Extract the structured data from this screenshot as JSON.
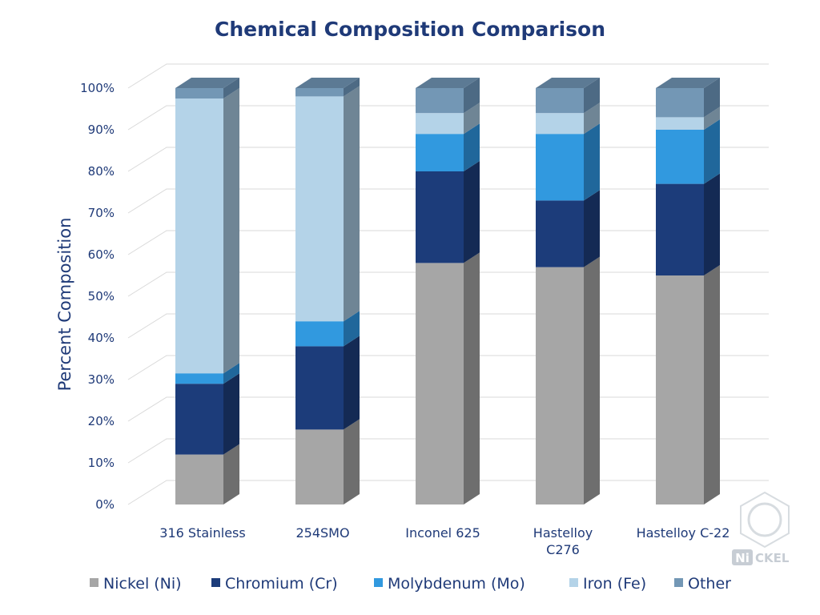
{
  "chart_data": {
    "type": "bar",
    "stacked": true,
    "three_d": true,
    "title": "Chemical Composition Comparison",
    "ylabel": "Percent Composition",
    "xlabel": "",
    "ylim": [
      0,
      100
    ],
    "y_ticks": [
      "0%",
      "10%",
      "20%",
      "30%",
      "40%",
      "50%",
      "60%",
      "70%",
      "80%",
      "90%",
      "100%"
    ],
    "grid": true,
    "legend_position": "bottom",
    "categories": [
      "316 Stainless",
      "254SMO",
      "Inconel 625",
      "Hastelloy C276",
      "Hastelloy C-22"
    ],
    "category_labels": [
      [
        "316 Stainless"
      ],
      [
        "254SMO"
      ],
      [
        "Inconel 625"
      ],
      [
        "Hastelloy",
        "C276"
      ],
      [
        "Hastelloy C-22"
      ]
    ],
    "series": [
      {
        "name": "Nickel (Ni)",
        "color": "#a6a6a6",
        "side_color": "#6e6e6e",
        "values": [
          12,
          18,
          58,
          57,
          55
        ]
      },
      {
        "name": "Chromium (Cr)",
        "color": "#1c3c7a",
        "side_color": "#142a54",
        "values": [
          17,
          20,
          22,
          16,
          22
        ]
      },
      {
        "name": "Molybdenum (Mo)",
        "color": "#3199df",
        "side_color": "#20679b",
        "values": [
          2.5,
          6,
          9,
          16,
          13
        ]
      },
      {
        "name": "Iron (Fe)",
        "color": "#b4d3e8",
        "side_color": "#6f8595",
        "values": [
          66,
          54,
          5,
          5,
          3
        ]
      },
      {
        "name": "Other",
        "color": "#7397b5",
        "side_color": "#4d6a84",
        "values": [
          3,
          3,
          6,
          6,
          7
        ]
      }
    ]
  },
  "watermark": {
    "logo_text_left": "Ni",
    "logo_text_right": "CKEL"
  }
}
